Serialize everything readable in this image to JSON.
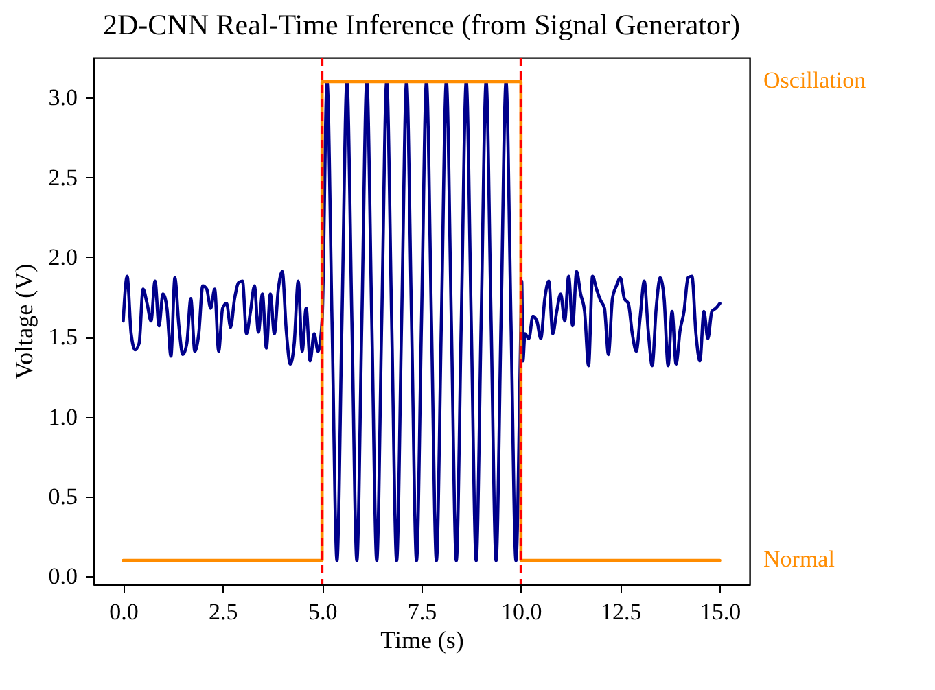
{
  "chart_data": {
    "type": "line",
    "title": "2D-CNN Real-Time Inference (from Signal Generator)",
    "xlabel": "Time (s)",
    "ylabel": "Voltage (V)",
    "xlim": [
      -0.75,
      15.75
    ],
    "xticks": [
      {
        "value": 0,
        "label": "0.0"
      },
      {
        "value": 2.5,
        "label": "2.5"
      },
      {
        "value": 5,
        "label": "5.0"
      },
      {
        "value": 7.5,
        "label": "7.5"
      },
      {
        "value": 10,
        "label": "10.0"
      },
      {
        "value": 12.5,
        "label": "12.5"
      },
      {
        "value": 15,
        "label": "15.0"
      }
    ],
    "ylim": [
      -0.05,
      3.25
    ],
    "yticks": [
      {
        "value": 0,
        "label": "0.0"
      },
      {
        "value": 0.5,
        "label": "0.5"
      },
      {
        "value": 1,
        "label": "1.0"
      },
      {
        "value": 1.5,
        "label": "1.5"
      },
      {
        "value": 2,
        "label": "2.0"
      },
      {
        "value": 2.5,
        "label": "2.5"
      },
      {
        "value": 3,
        "label": "3.0"
      }
    ],
    "annotations": [
      "Normal",
      "Oscillation"
    ],
    "grid": false,
    "series": [
      {
        "color": "#00008b",
        "x": [
          0,
          0.1,
          0.2,
          0.3,
          0.4,
          0.5,
          0.6,
          0.7,
          0.8,
          0.9,
          1.0,
          1.1,
          1.2,
          1.3,
          1.4,
          1.5,
          1.6,
          1.7,
          1.8,
          1.9,
          2.0,
          2.1,
          2.2,
          2.3,
          2.4,
          2.5,
          2.6,
          2.7,
          2.8,
          2.9,
          3.0,
          3.1,
          3.2,
          3.3,
          3.4,
          3.5,
          3.6,
          3.7,
          3.8,
          3.9,
          4.0,
          4.1,
          4.2,
          4.3,
          4.4,
          4.5,
          4.6,
          4.7,
          4.8,
          4.9,
          5.0,
          5.125,
          5.25,
          5.375,
          5.5,
          5.625,
          5.75,
          5.875,
          6.0,
          6.125,
          6.25,
          6.375,
          6.5,
          6.625,
          6.75,
          6.875,
          7.0,
          7.125,
          7.25,
          7.375,
          7.5,
          7.625,
          7.75,
          7.875,
          8.0,
          8.125,
          8.25,
          8.375,
          8.5,
          8.625,
          8.75,
          8.875,
          9.0,
          9.125,
          9.25,
          9.375,
          9.5,
          9.625,
          9.75,
          9.875,
          10.0,
          10.02,
          10.05,
          10.1,
          10.2,
          10.3,
          10.4,
          10.5,
          10.6,
          10.7,
          10.8,
          10.9,
          11.0,
          11.1,
          11.2,
          11.3,
          11.4,
          11.5,
          11.6,
          11.7,
          11.8,
          11.9,
          12.0,
          12.1,
          12.2,
          12.3,
          12.4,
          12.5,
          12.6,
          12.7,
          12.8,
          12.9,
          13.0,
          13.1,
          13.2,
          13.3,
          13.4,
          13.5,
          13.6,
          13.7,
          13.8,
          13.9,
          14.0,
          14.1,
          14.2,
          14.3,
          14.4,
          14.5,
          14.6,
          14.7,
          14.8,
          14.9,
          15.0
        ],
        "values": [
          1.6,
          1.88,
          1.52,
          1.42,
          1.46,
          1.8,
          1.71,
          1.6,
          1.85,
          1.57,
          1.77,
          1.68,
          1.38,
          1.87,
          1.57,
          1.39,
          1.46,
          1.74,
          1.41,
          1.52,
          1.82,
          1.8,
          1.68,
          1.8,
          1.41,
          1.68,
          1.71,
          1.56,
          1.74,
          1.84,
          1.85,
          1.52,
          1.66,
          1.82,
          1.53,
          1.77,
          1.43,
          1.77,
          1.52,
          1.8,
          1.91,
          1.54,
          1.33,
          1.46,
          1.85,
          1.41,
          1.68,
          1.35,
          1.52,
          1.41,
          1.6,
          3.1,
          1.6,
          0.1,
          1.6,
          3.1,
          1.6,
          0.1,
          1.6,
          3.1,
          1.6,
          0.1,
          1.6,
          3.1,
          1.6,
          0.1,
          1.6,
          3.1,
          1.6,
          0.1,
          1.6,
          3.1,
          1.6,
          0.1,
          1.6,
          3.1,
          1.6,
          0.1,
          1.6,
          3.1,
          1.6,
          0.1,
          1.6,
          3.1,
          1.6,
          0.1,
          1.6,
          3.1,
          1.6,
          0.1,
          1.6,
          1.85,
          1.35,
          1.52,
          1.49,
          1.63,
          1.6,
          1.49,
          1.74,
          1.85,
          1.52,
          1.66,
          1.77,
          1.6,
          1.88,
          1.57,
          1.91,
          1.77,
          1.66,
          1.32,
          1.88,
          1.8,
          1.73,
          1.68,
          1.39,
          1.74,
          1.82,
          1.87,
          1.74,
          1.71,
          1.52,
          1.41,
          1.63,
          1.85,
          1.54,
          1.32,
          1.68,
          1.87,
          1.74,
          1.32,
          1.66,
          1.33,
          1.54,
          1.66,
          1.87,
          1.88,
          1.52,
          1.35,
          1.66,
          1.49,
          1.66,
          1.68,
          1.71
        ]
      },
      {
        "color": "#ff8c00",
        "x": [
          0,
          5,
          5,
          10,
          10,
          15
        ],
        "values": [
          0.1,
          0.1,
          3.1,
          3.1,
          0.1,
          0.1
        ]
      }
    ],
    "ref_lines": [
      {
        "axis": "x",
        "value": 5,
        "color": "#ff0000",
        "line_style": "dashed"
      },
      {
        "axis": "x",
        "value": 10,
        "color": "#ff0000",
        "line_style": "dashed"
      }
    ]
  }
}
